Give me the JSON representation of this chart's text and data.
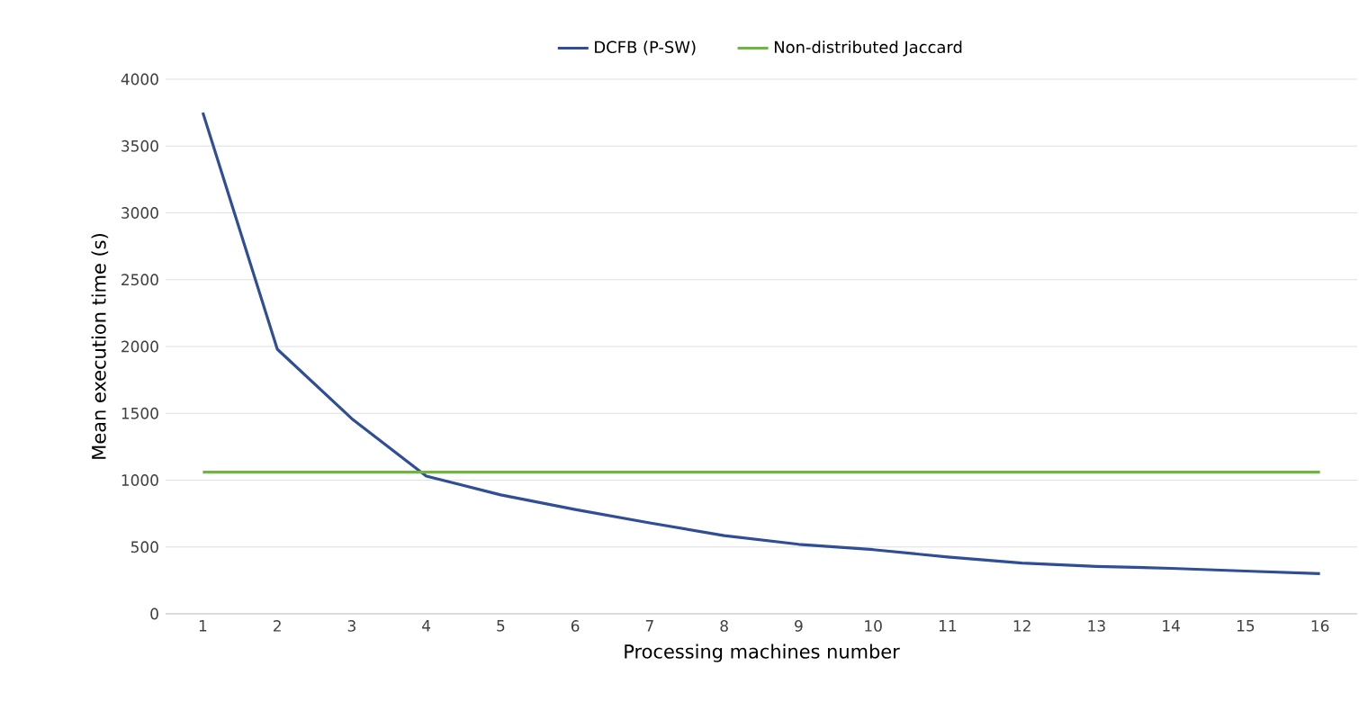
{
  "chart_data": {
    "type": "line",
    "xlabel": "Processing machines number",
    "ylabel": "Mean execution time (s)",
    "categories": [
      "1",
      "2",
      "3",
      "4",
      "5",
      "6",
      "7",
      "8",
      "9",
      "10",
      "11",
      "12",
      "13",
      "14",
      "15",
      "16"
    ],
    "series": [
      {
        "name": "DCFB (P-SW)",
        "color": "#2f4e96",
        "values": [
          3750,
          1980,
          1460,
          1030,
          890,
          780,
          680,
          585,
          520,
          480,
          425,
          380,
          355,
          340,
          320,
          300
        ]
      },
      {
        "name": "Non-distributed Jaccard",
        "color": "#6fb640",
        "values": [
          1060,
          1060,
          1060,
          1060,
          1060,
          1060,
          1060,
          1060,
          1060,
          1060,
          1060,
          1060,
          1060,
          1060,
          1060,
          1060
        ]
      }
    ],
    "ylim": [
      0,
      4000
    ],
    "yticks": [
      0,
      500,
      1000,
      1500,
      2000,
      2500,
      3000,
      3500,
      4000
    ],
    "grid": "y",
    "legend": "top",
    "marker": "none",
    "line_style": "solid"
  }
}
